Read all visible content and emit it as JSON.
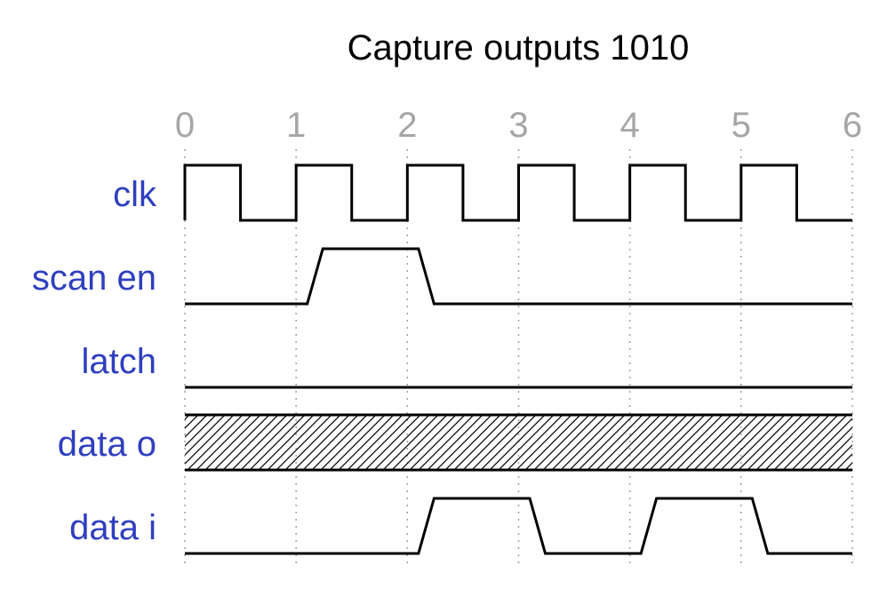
{
  "title": "Capture outputs 1010",
  "time_ticks": [
    "0",
    "1",
    "2",
    "3",
    "4",
    "5",
    "6"
  ],
  "colors": {
    "title": "#000000",
    "tick": "#a6a6a6",
    "signal_label": "#2f3fbf",
    "waveform": "#000000",
    "grid": "#a0a0a0"
  },
  "chart_data": {
    "type": "timing",
    "title": "Capture outputs 1010",
    "time_range": [
      0,
      6
    ],
    "signals": [
      {
        "name": "clk",
        "kind": "clock",
        "period": 1,
        "duty": 0.5,
        "starts_high": true
      },
      {
        "name": "scan en",
        "kind": "digital",
        "transitions": [
          [
            0,
            0
          ],
          [
            1.1,
            1
          ],
          [
            2.1,
            0
          ]
        ]
      },
      {
        "name": "latch",
        "kind": "digital",
        "transitions": [
          [
            0,
            0
          ]
        ]
      },
      {
        "name": "data o",
        "kind": "bus",
        "state": "unknown (hatched)"
      },
      {
        "name": "data i",
        "kind": "digital",
        "transitions": [
          [
            0,
            0
          ],
          [
            2.1,
            1
          ],
          [
            3.1,
            0
          ],
          [
            4.1,
            1
          ],
          [
            5.1,
            0
          ]
        ]
      }
    ]
  }
}
